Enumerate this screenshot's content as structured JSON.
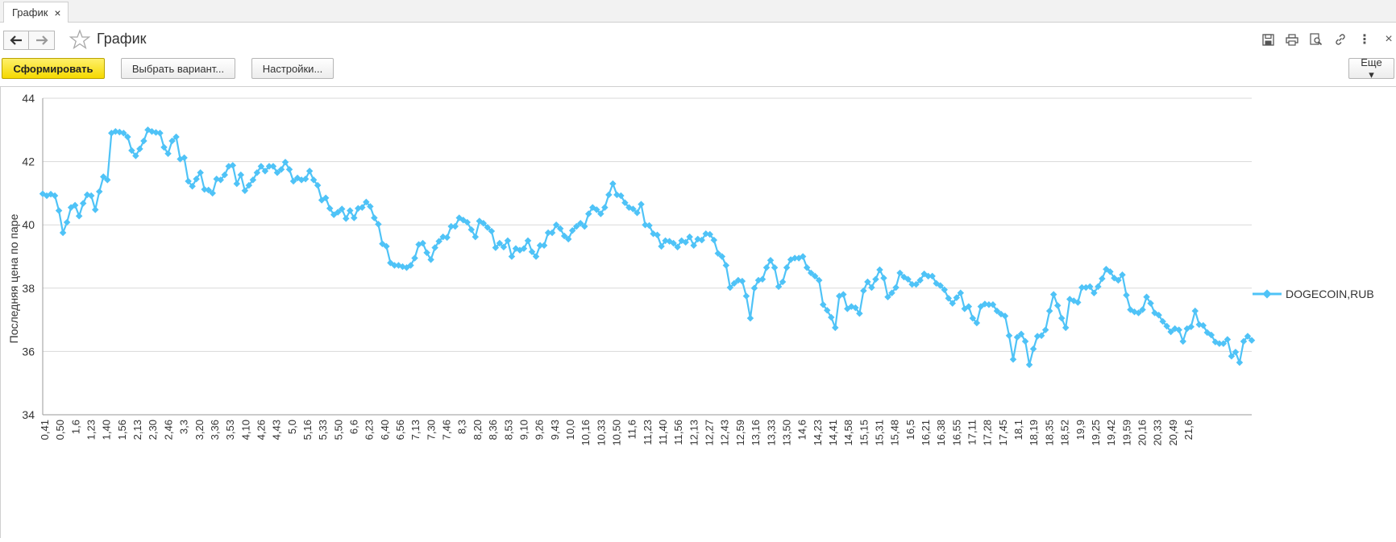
{
  "tab": {
    "label": "График",
    "close_label": "×"
  },
  "header": {
    "title": "График",
    "more_label": "⋮",
    "close_label": "×"
  },
  "icons": {
    "back": "arrow-left-icon",
    "forward": "arrow-right-icon",
    "favorite": "star-icon",
    "save": "floppy-disk-icon",
    "print": "printer-icon",
    "preview": "print-preview-icon",
    "link": "link-icon",
    "more": "more-vertical-icon",
    "close": "close-icon"
  },
  "toolbar": {
    "generate_label": "Сформировать",
    "choose_variant_label": "Выбрать вариант...",
    "settings_label": "Настройки...",
    "more_label": "Еще ▾"
  },
  "colors": {
    "series": "#4fc3f7",
    "primary_button": "#f5d900",
    "grid": "#d9d9d9"
  },
  "chart_data": {
    "type": "line",
    "title": "",
    "xlabel": "",
    "ylabel": "Последняя цена по паре",
    "ylim": [
      34,
      44
    ],
    "yticks": [
      34,
      36,
      38,
      40,
      42,
      44
    ],
    "grid": true,
    "legend_position": "right",
    "x_tick_labels": [
      "0,41",
      "0,50",
      "1,6",
      "1,23",
      "1,40",
      "1,56",
      "2,13",
      "2,30",
      "2,46",
      "3,3",
      "3,20",
      "3,36",
      "3,53",
      "4,10",
      "4,26",
      "4,43",
      "5,0",
      "5,16",
      "5,33",
      "5,50",
      "6,6",
      "6,23",
      "6,40",
      "6,56",
      "7,13",
      "7,30",
      "7,46",
      "8,3",
      "8,20",
      "8,36",
      "8,53",
      "9,10",
      "9,26",
      "9,43",
      "10,0",
      "10,16",
      "10,33",
      "10,50",
      "11,6",
      "11,23",
      "11,40",
      "11,56",
      "12,13",
      "12,27",
      "12,43",
      "12,59",
      "13,16",
      "13,33",
      "13,50",
      "14,6",
      "14,23",
      "14,41",
      "14,58",
      "15,15",
      "15,31",
      "15,48",
      "16,5",
      "16,21",
      "16,38",
      "16,55",
      "17,11",
      "17,28",
      "17,45",
      "18,1",
      "18,19",
      "18,35",
      "18,52",
      "19,9",
      "19,25",
      "19,42",
      "19,59",
      "20,16",
      "20,33",
      "20,49",
      "21,6"
    ],
    "series": [
      {
        "name": "DOGECOIN,RUB",
        "values": [
          40.98,
          40.92,
          40.97,
          40.92,
          40.45,
          39.75,
          40.08,
          40.55,
          40.62,
          40.28,
          40.68,
          40.95,
          40.92,
          40.48,
          41.05,
          41.52,
          41.42,
          42.9,
          42.95,
          42.93,
          42.9,
          42.78,
          42.35,
          42.18,
          42.4,
          42.65,
          43.0,
          42.95,
          42.92,
          42.9,
          42.45,
          42.25,
          42.65,
          42.78,
          42.08,
          42.12,
          41.38,
          41.22,
          41.45,
          41.65,
          41.12,
          41.1,
          41.0,
          41.45,
          41.42,
          41.58,
          41.85,
          41.88,
          41.3,
          41.58,
          41.08,
          41.25,
          41.42,
          41.65,
          41.85,
          41.7,
          41.85,
          41.85,
          41.65,
          41.75,
          41.98,
          41.75,
          41.38,
          41.48,
          41.42,
          41.45,
          41.7,
          41.42,
          41.25,
          40.78,
          40.85,
          40.52,
          40.32,
          40.4,
          40.5,
          40.2,
          40.45,
          40.22,
          40.52,
          40.55,
          40.72,
          40.58,
          40.22,
          40.02,
          39.4,
          39.32,
          38.8,
          38.72,
          38.72,
          38.68,
          38.65,
          38.72,
          38.95,
          39.38,
          39.42,
          39.12,
          38.9,
          39.28,
          39.48,
          39.62,
          39.6,
          39.95,
          39.95,
          40.22,
          40.15,
          40.08,
          39.85,
          39.62,
          40.12,
          40.05,
          39.92,
          39.8,
          39.28,
          39.42,
          39.3,
          39.5,
          39.0,
          39.25,
          39.2,
          39.25,
          39.5,
          39.15,
          39.0,
          39.35,
          39.35,
          39.75,
          39.75,
          40.0,
          39.88,
          39.65,
          39.55,
          39.82,
          39.95,
          40.05,
          39.95,
          40.35,
          40.55,
          40.48,
          40.35,
          40.55,
          40.95,
          41.3,
          40.95,
          40.92,
          40.7,
          40.55,
          40.5,
          40.38,
          40.65,
          40.0,
          39.98,
          39.72,
          39.68,
          39.32,
          39.5,
          39.48,
          39.42,
          39.3,
          39.5,
          39.45,
          39.62,
          39.35,
          39.55,
          39.52,
          39.72,
          39.7,
          39.52,
          39.1,
          39.0,
          38.72,
          38.02,
          38.15,
          38.25,
          38.22,
          37.75,
          37.05,
          38.0,
          38.25,
          38.28,
          38.65,
          38.88,
          38.65,
          38.05,
          38.2,
          38.65,
          38.9,
          38.95,
          38.95,
          39.0,
          38.65,
          38.48,
          38.38,
          38.25,
          37.48,
          37.3,
          37.08,
          36.75,
          37.75,
          37.8,
          37.35,
          37.42,
          37.38,
          37.2,
          37.92,
          38.2,
          38.02,
          38.28,
          38.58,
          38.32,
          37.72,
          37.85,
          38.02,
          38.48,
          38.35,
          38.28,
          38.12,
          38.12,
          38.25,
          38.45,
          38.38,
          38.38,
          38.15,
          38.08,
          37.95,
          37.68,
          37.52,
          37.7,
          37.85,
          37.35,
          37.42,
          37.05,
          36.9,
          37.42,
          37.5,
          37.48,
          37.48,
          37.28,
          37.18,
          37.12,
          36.5,
          35.75,
          36.45,
          36.55,
          36.32,
          35.58,
          36.08,
          36.48,
          36.5,
          36.68,
          37.28,
          37.8,
          37.45,
          37.05,
          36.75,
          37.65,
          37.6,
          37.55,
          38.02,
          38.02,
          38.05,
          37.85,
          38.05,
          38.3,
          38.6,
          38.52,
          38.32,
          38.25,
          38.42,
          37.78,
          37.32,
          37.25,
          37.22,
          37.32,
          37.72,
          37.52,
          37.22,
          37.15,
          36.95,
          36.8,
          36.62,
          36.72,
          36.68,
          36.32,
          36.72,
          36.78,
          37.28,
          36.85,
          36.82,
          36.6,
          36.52,
          36.3,
          36.25,
          36.25,
          36.38,
          35.85,
          35.98,
          35.65,
          36.32,
          36.48,
          36.35
        ]
      }
    ]
  }
}
